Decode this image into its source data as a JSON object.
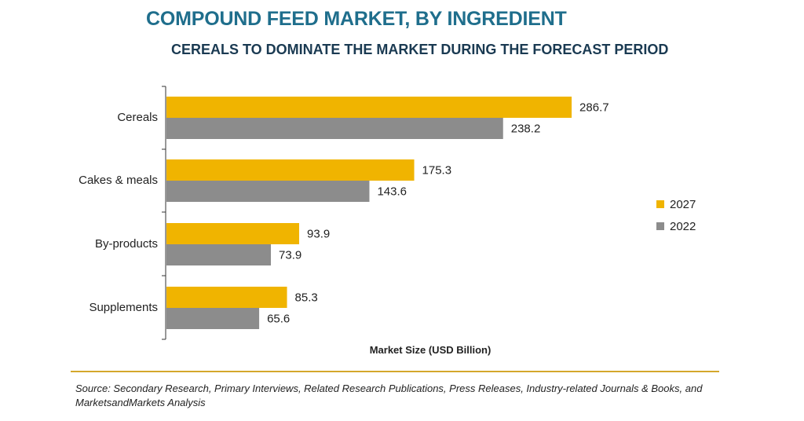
{
  "header": {
    "title": "COMPOUND FEED MARKET, BY INGREDIENT",
    "subtitle": "CEREALS TO DOMINATE THE MARKET DURING THE FORECAST PERIOD"
  },
  "footer": {
    "source": "Source: Secondary Research, Primary Interviews, Related Research Publications, Press Releases, Industry-related Journals & Books, and MarketsandMarkets Analysis"
  },
  "colors": {
    "series_2027": "#f0b400",
    "series_2022": "#8c8c8c",
    "title": "#1f6e8c",
    "subtitle": "#1a3a52",
    "footer_rule": "#d4a72c"
  },
  "chart_data": {
    "type": "bar",
    "orientation": "horizontal",
    "title": "COMPOUND FEED MARKET, BY INGREDIENT",
    "subtitle": "CEREALS TO DOMINATE THE MARKET DURING THE FORECAST PERIOD",
    "xlabel": "Market Size (USD Billion)",
    "ylabel": "",
    "categories": [
      "Cereals",
      "Cakes & meals",
      "By-products",
      "Supplements"
    ],
    "series": [
      {
        "name": "2027",
        "values": [
          286.7,
          175.3,
          93.9,
          85.3
        ]
      },
      {
        "name": "2022",
        "values": [
          238.2,
          143.6,
          73.9,
          65.6
        ]
      }
    ],
    "xlim": [
      0,
      300
    ],
    "grid": false,
    "legend_position": "right"
  }
}
